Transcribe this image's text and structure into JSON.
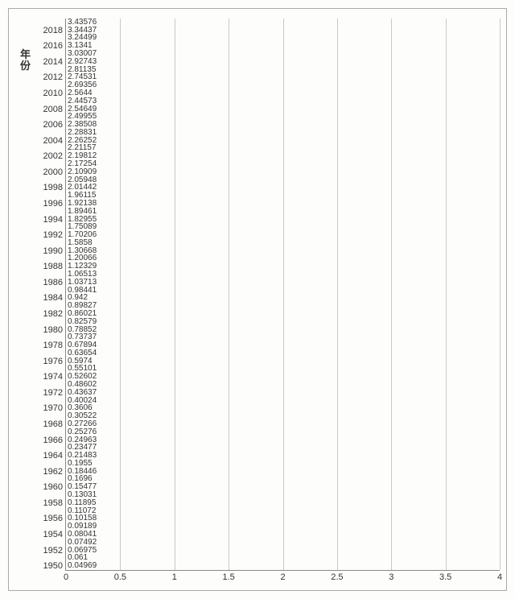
{
  "chart": {
    "type": "bar",
    "orientation": "horizontal",
    "y_title": "年份",
    "title_fontsize": 13,
    "label_fontsize": 11,
    "value_fontsize": 10,
    "background_color": "#fdfdfc",
    "bar_color": "#c5d6a0",
    "grid_color": "#c8c8c8",
    "border_color": "#888888",
    "xlim": [
      0,
      4
    ],
    "xtick_step": 0.5,
    "x_ticks": [
      0,
      0.5,
      1,
      1.5,
      2,
      2.5,
      3,
      3.5,
      4
    ],
    "y_tick_step": 2,
    "y_ticks_shown": [
      1950,
      1952,
      1954,
      1956,
      1958,
      1960,
      1962,
      1964,
      1966,
      1968,
      1970,
      1972,
      1974,
      1976,
      1978,
      1980,
      1982,
      1984,
      1986,
      1988,
      1990,
      1992,
      1994,
      1996,
      1998,
      2000,
      2002,
      2004,
      2006,
      2008,
      2010,
      2012,
      2014,
      2016,
      2018
    ],
    "series": [
      {
        "year": 1950,
        "value": 0.04969
      },
      {
        "year": 1951,
        "value": 0.061
      },
      {
        "year": 1952,
        "value": 0.06975
      },
      {
        "year": 1953,
        "value": 0.07492
      },
      {
        "year": 1954,
        "value": 0.08041
      },
      {
        "year": 1955,
        "value": 0.09189
      },
      {
        "year": 1956,
        "value": 0.10158
      },
      {
        "year": 1957,
        "value": 0.11072
      },
      {
        "year": 1958,
        "value": 0.11895
      },
      {
        "year": 1959,
        "value": 0.13031
      },
      {
        "year": 1960,
        "value": 0.15477
      },
      {
        "year": 1961,
        "value": 0.1696
      },
      {
        "year": 1962,
        "value": 0.18446
      },
      {
        "year": 1963,
        "value": 0.1955
      },
      {
        "year": 1964,
        "value": 0.21483
      },
      {
        "year": 1965,
        "value": 0.23477
      },
      {
        "year": 1966,
        "value": 0.24963
      },
      {
        "year": 1967,
        "value": 0.25276
      },
      {
        "year": 1968,
        "value": 0.27266
      },
      {
        "year": 1969,
        "value": 0.30522
      },
      {
        "year": 1970,
        "value": 0.3606
      },
      {
        "year": 1971,
        "value": 0.40024
      },
      {
        "year": 1972,
        "value": 0.43637
      },
      {
        "year": 1973,
        "value": 0.48602
      },
      {
        "year": 1974,
        "value": 0.52602
      },
      {
        "year": 1975,
        "value": 0.55101
      },
      {
        "year": 1976,
        "value": 0.5974
      },
      {
        "year": 1977,
        "value": 0.63654
      },
      {
        "year": 1978,
        "value": 0.67894
      },
      {
        "year": 1979,
        "value": 0.73737
      },
      {
        "year": 1980,
        "value": 0.78852
      },
      {
        "year": 1981,
        "value": 0.82579
      },
      {
        "year": 1982,
        "value": 0.86021
      },
      {
        "year": 1983,
        "value": 0.89827
      },
      {
        "year": 1984,
        "value": 0.942
      },
      {
        "year": 1985,
        "value": 0.98441
      },
      {
        "year": 1986,
        "value": 1.03713
      },
      {
        "year": 1987,
        "value": 1.06513
      },
      {
        "year": 1988,
        "value": 1.12329
      },
      {
        "year": 1989,
        "value": 1.20066
      },
      {
        "year": 1990,
        "value": 1.30668
      },
      {
        "year": 1991,
        "value": 1.5858
      },
      {
        "year": 1992,
        "value": 1.70206
      },
      {
        "year": 1993,
        "value": 1.75089
      },
      {
        "year": 1994,
        "value": 1.82955
      },
      {
        "year": 1995,
        "value": 1.89461
      },
      {
        "year": 1996,
        "value": 1.92138
      },
      {
        "year": 1997,
        "value": 1.96115
      },
      {
        "year": 1998,
        "value": 2.01442
      },
      {
        "year": 1999,
        "value": 2.05948
      },
      {
        "year": 2000,
        "value": 2.10909
      },
      {
        "year": 2001,
        "value": 2.17254
      },
      {
        "year": 2002,
        "value": 2.19812
      },
      {
        "year": 2003,
        "value": 2.21157
      },
      {
        "year": 2004,
        "value": 2.26252
      },
      {
        "year": 2005,
        "value": 2.28831
      },
      {
        "year": 2006,
        "value": 2.38508
      },
      {
        "year": 2007,
        "value": 2.49955
      },
      {
        "year": 2008,
        "value": 2.54649
      },
      {
        "year": 2009,
        "value": 2.44573
      },
      {
        "year": 2010,
        "value": 2.5644
      },
      {
        "year": 2011,
        "value": 2.69356
      },
      {
        "year": 2012,
        "value": 2.74531
      },
      {
        "year": 2013,
        "value": 2.81135
      },
      {
        "year": 2014,
        "value": 2.92743
      },
      {
        "year": 2015,
        "value": 3.03007
      },
      {
        "year": 2016,
        "value": 3.1341
      },
      {
        "year": 2017,
        "value": 3.24499
      },
      {
        "year": 2018,
        "value": 3.34437
      },
      {
        "year": 2019,
        "value": 3.43576
      }
    ]
  }
}
